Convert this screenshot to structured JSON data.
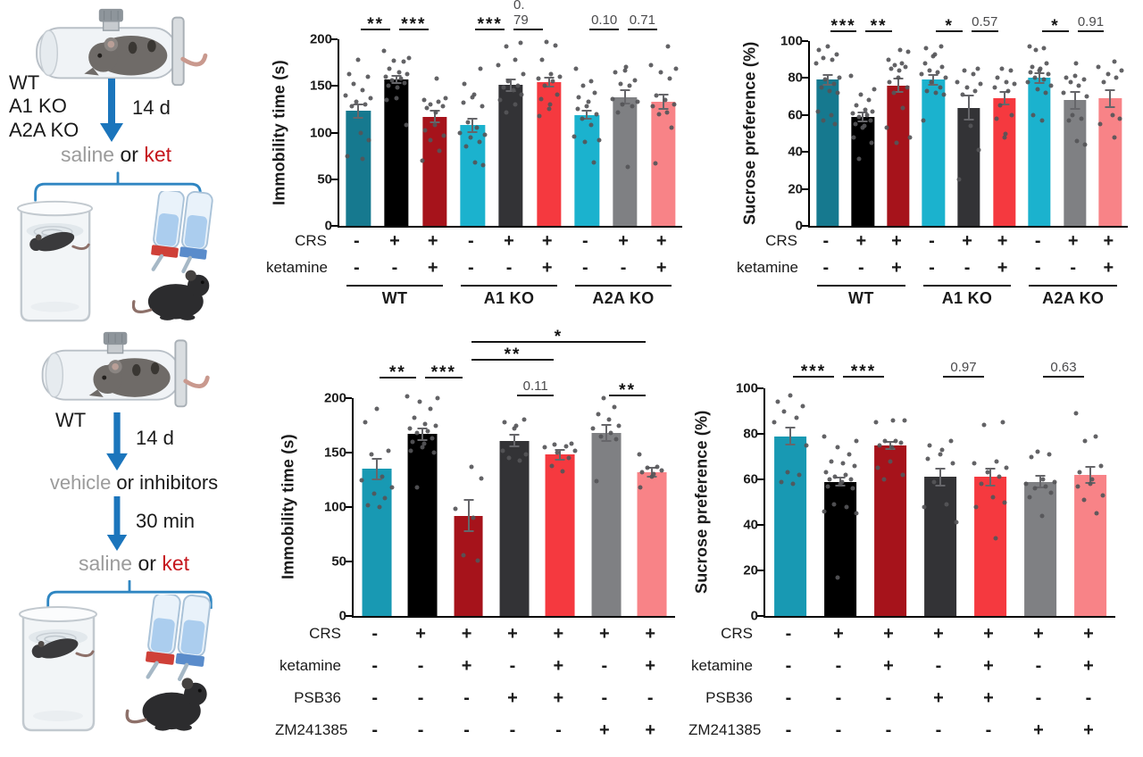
{
  "palette": {
    "teal": "#16798F",
    "black": "#000000",
    "dark_red": "#A6131B",
    "cyan": "#1BB2CE",
    "mid_cyan": "#1899B3",
    "charcoal": "#333336",
    "red": "#F5393F",
    "gray": "#7F8083",
    "salmon": "#F88387",
    "schematic_gray": "#9b9b9b",
    "ket_red": "#c5161d",
    "text_black": "#1a1a1a",
    "arrow_blue": "#1b75bc",
    "bracket_blue": "#2f86c2"
  },
  "schematic_top": {
    "strains": [
      "WT",
      "A1 KO",
      "A2A KO"
    ],
    "duration": "14 d",
    "saline": "saline",
    "or": " or ",
    "ket": "ket"
  },
  "schematic_bottom": {
    "strain": "WT",
    "duration": "14 d",
    "vehicle": "vehicle",
    "or_inhibitors": " or inhibitors",
    "delay": "30 min",
    "saline": "saline",
    "or": " or ",
    "ket": "ket"
  },
  "chart_data": [
    {
      "type": "bar",
      "ylabel": "Immobility time (s)",
      "ylim": [
        0,
        200
      ],
      "yticks": [
        0,
        50,
        100,
        150,
        200
      ],
      "bars": [
        {
          "value": 123,
          "err": 8,
          "color": "teal",
          "points": [
            178,
            163,
            160,
            152,
            145,
            140,
            137,
            133,
            130,
            128,
            100,
            92,
            75,
            72
          ]
        },
        {
          "value": 157,
          "err": 5,
          "color": "black",
          "points": [
            188,
            180,
            177,
            176,
            168,
            165,
            163,
            160,
            158,
            156,
            153,
            150,
            148,
            137,
            135,
            108
          ]
        },
        {
          "value": 117,
          "err": 7,
          "color": "dark_red",
          "points": [
            158,
            137,
            135,
            133,
            130,
            128,
            126,
            122,
            108,
            102,
            97,
            92,
            80,
            70
          ]
        },
        {
          "value": 108,
          "err": 8,
          "color": "cyan",
          "points": [
            168,
            152,
            141,
            138,
            132,
            128,
            111,
            105,
            100,
            98,
            95,
            90,
            85,
            68,
            65
          ]
        },
        {
          "value": 151,
          "err": 7,
          "color": "charcoal",
          "points": [
            196,
            192,
            178,
            172,
            163,
            155,
            150,
            148,
            145,
            141,
            135,
            130,
            122
          ]
        },
        {
          "value": 154,
          "err": 6,
          "color": "red",
          "points": [
            197,
            193,
            178,
            163,
            160,
            158,
            155,
            150,
            141,
            136,
            130,
            125,
            118
          ]
        },
        {
          "value": 119,
          "err": 5,
          "color": "cyan",
          "points": [
            168,
            155,
            150,
            143,
            138,
            133,
            128,
            125,
            120,
            115,
            108,
            96,
            92,
            90,
            68
          ]
        },
        {
          "value": 138,
          "err": 8,
          "color": "gray",
          "points": [
            170,
            167,
            165,
            156,
            152,
            150,
            136,
            133,
            130,
            128,
            122,
            63
          ]
        },
        {
          "value": 133,
          "err": 9,
          "color": "salmon",
          "points": [
            192,
            172,
            168,
            165,
            158,
            140,
            135,
            130,
            128,
            122,
            120,
            105,
            67
          ]
        }
      ],
      "sig": [
        {
          "from": 0,
          "to": 1,
          "label": "**",
          "level": 0
        },
        {
          "from": 1,
          "to": 2,
          "label": "***",
          "level": 0
        },
        {
          "from": 3,
          "to": 4,
          "label": "***",
          "level": 0
        },
        {
          "from": 4,
          "to": 5,
          "label": "0. 79",
          "level": 0
        },
        {
          "from": 6,
          "to": 7,
          "label": "0.10",
          "level": 0
        },
        {
          "from": 7,
          "to": 8,
          "label": "0.71",
          "level": 0
        }
      ],
      "rows": [
        {
          "label": "CRS",
          "values": [
            "-",
            "+",
            "+",
            "-",
            "+",
            "+",
            "-",
            "+",
            "+"
          ]
        },
        {
          "label": "ketamine",
          "values": [
            "-",
            "-",
            "+",
            "-",
            "-",
            "+",
            "-",
            "-",
            "+"
          ]
        }
      ],
      "groups": [
        {
          "label": "WT",
          "from": 0,
          "to": 2
        },
        {
          "label": "A1 KO",
          "from": 3,
          "to": 5
        },
        {
          "label": "A2A KO",
          "from": 6,
          "to": 8
        }
      ]
    },
    {
      "type": "bar",
      "ylabel": "Sucrose preference (%)",
      "ylim": [
        0,
        100
      ],
      "yticks": [
        0,
        20,
        40,
        60,
        80,
        100
      ],
      "bars": [
        {
          "value": 79,
          "err": 3,
          "color": "teal",
          "points": [
            97,
            95,
            93,
            91,
            90,
            88,
            80,
            79,
            77,
            75,
            73,
            72,
            62,
            60,
            57,
            55
          ]
        },
        {
          "value": 59,
          "err": 3,
          "color": "black",
          "points": [
            81,
            74,
            71,
            68,
            65,
            63,
            62,
            61,
            60,
            59,
            57,
            55,
            54,
            53,
            48,
            45,
            36
          ]
        },
        {
          "value": 76,
          "err": 4,
          "color": "dark_red",
          "points": [
            95,
            94,
            90,
            88,
            87,
            86,
            85,
            84,
            80,
            78,
            75,
            72,
            64,
            53,
            48,
            45
          ]
        },
        {
          "value": 79,
          "err": 3,
          "color": "cyan",
          "points": [
            97,
            96,
            93,
            92,
            88,
            86,
            84,
            83,
            82,
            80,
            78,
            75,
            73,
            72,
            71,
            57
          ]
        },
        {
          "value": 64,
          "err": 7,
          "color": "charcoal",
          "points": [
            85,
            84,
            82,
            78,
            77,
            75,
            73,
            71,
            54,
            41,
            25
          ]
        },
        {
          "value": 69,
          "err": 4,
          "color": "red",
          "points": [
            85,
            84,
            80,
            78,
            77,
            75,
            73,
            65,
            60,
            58,
            50,
            48
          ]
        },
        {
          "value": 80,
          "err": 3,
          "color": "cyan",
          "points": [
            97,
            96,
            95,
            88,
            86,
            85,
            84,
            83,
            82,
            80,
            79,
            78,
            76,
            74,
            72,
            60,
            57
          ]
        },
        {
          "value": 68,
          "err": 5,
          "color": "gray",
          "points": [
            88,
            81,
            80,
            79,
            78,
            76,
            72,
            70,
            60,
            58,
            57,
            46,
            44
          ]
        },
        {
          "value": 69,
          "err": 5,
          "color": "salmon",
          "points": [
            89,
            86,
            84,
            82,
            80,
            78,
            60,
            58,
            55,
            48
          ]
        }
      ],
      "sig": [
        {
          "from": 0,
          "to": 1,
          "label": "***",
          "level": 0
        },
        {
          "from": 1,
          "to": 2,
          "label": "**",
          "level": 0
        },
        {
          "from": 3,
          "to": 4,
          "label": "*",
          "level": 0
        },
        {
          "from": 4,
          "to": 5,
          "label": "0.57",
          "level": 0
        },
        {
          "from": 6,
          "to": 7,
          "label": "*",
          "level": 0
        },
        {
          "from": 7,
          "to": 8,
          "label": "0.91",
          "level": 0
        }
      ],
      "rows": [
        {
          "label": "CRS",
          "values": [
            "-",
            "+",
            "+",
            "-",
            "+",
            "+",
            "-",
            "+",
            "+"
          ]
        },
        {
          "label": "ketamine",
          "values": [
            "-",
            "-",
            "+",
            "-",
            "-",
            "+",
            "-",
            "-",
            "+"
          ]
        }
      ],
      "groups": [
        {
          "label": "WT",
          "from": 0,
          "to": 2
        },
        {
          "label": "A1 KO",
          "from": 3,
          "to": 5
        },
        {
          "label": "A2A KO",
          "from": 6,
          "to": 8
        }
      ]
    },
    {
      "type": "bar",
      "ylabel": "Immobility time (s)",
      "ylim": [
        0,
        200
      ],
      "yticks": [
        0,
        50,
        100,
        150,
        200
      ],
      "bars": [
        {
          "value": 135,
          "err": 10,
          "color": "mid_cyan",
          "points": [
            190,
            178,
            152,
            148,
            128,
            125,
            118,
            112,
            108,
            102,
            100
          ]
        },
        {
          "value": 167,
          "err": 6,
          "color": "black",
          "points": [
            202,
            200,
            197,
            190,
            182,
            176,
            175,
            172,
            170,
            168,
            163,
            160,
            158,
            155,
            152,
            150,
            118
          ]
        },
        {
          "value": 92,
          "err": 15,
          "color": "dark_red",
          "points": [
            137,
            126,
            98,
            90,
            56,
            51
          ]
        },
        {
          "value": 161,
          "err": 6,
          "color": "charcoal",
          "points": [
            180,
            178,
            175,
            172,
            152,
            148,
            145,
            143
          ]
        },
        {
          "value": 148,
          "err": 5,
          "color": "red",
          "points": [
            158,
            157,
            156,
            155,
            152,
            150,
            145,
            138,
            133
          ]
        },
        {
          "value": 168,
          "err": 8,
          "color": "gray",
          "points": [
            200,
            192,
            185,
            180,
            175,
            172,
            168,
            165,
            162,
            124
          ]
        },
        {
          "value": 132,
          "err": 5,
          "color": "salmon",
          "points": [
            148,
            137,
            136,
            134,
            132,
            130,
            128,
            118
          ]
        }
      ],
      "sig": [
        {
          "from": 3,
          "to": 4,
          "label": "0.11",
          "level": 0
        },
        {
          "from": 5,
          "to": 6,
          "label": "**",
          "level": 0
        },
        {
          "from": 0,
          "to": 1,
          "label": "**",
          "level": 1
        },
        {
          "from": 1,
          "to": 2,
          "label": "***",
          "level": 1
        },
        {
          "from": 2,
          "to": 4,
          "label": "**",
          "level": 2
        },
        {
          "from": 2,
          "to": 6,
          "label": "*",
          "level": 3
        }
      ],
      "rows": [
        {
          "label": "CRS",
          "values": [
            "-",
            "+",
            "+",
            "+",
            "+",
            "+",
            "+"
          ]
        },
        {
          "label": "ketamine",
          "values": [
            "-",
            "-",
            "+",
            "-",
            "+",
            "-",
            "+"
          ]
        },
        {
          "label": "PSB36",
          "values": [
            "-",
            "-",
            "-",
            "+",
            "+",
            "-",
            "-"
          ]
        },
        {
          "label": "ZM241385",
          "values": [
            "-",
            "-",
            "-",
            "-",
            "-",
            "+",
            "+"
          ]
        }
      ],
      "groups": []
    },
    {
      "type": "bar",
      "ylabel": "Sucrose preference (%)",
      "ylim": [
        0,
        100
      ],
      "yticks": [
        0,
        20,
        40,
        60,
        80,
        100
      ],
      "bars": [
        {
          "value": 79,
          "err": 4,
          "color": "mid_cyan",
          "points": [
            97,
            94,
            92,
            90,
            87,
            85,
            75,
            63,
            62,
            59,
            58
          ]
        },
        {
          "value": 59,
          "err": 2,
          "color": "black",
          "points": [
            79,
            77,
            74,
            71,
            68,
            67,
            66,
            63,
            62,
            61,
            60,
            60,
            59,
            58,
            57,
            56,
            49,
            48,
            46,
            45,
            17
          ]
        },
        {
          "value": 75,
          "err": 2,
          "color": "dark_red",
          "points": [
            86,
            86,
            85,
            77,
            77,
            76,
            75,
            74,
            68,
            65,
            62,
            60
          ]
        },
        {
          "value": 61,
          "err": 4,
          "color": "charcoal",
          "points": [
            77,
            75,
            73,
            71,
            69,
            67,
            59,
            49,
            48,
            41
          ]
        },
        {
          "value": 61,
          "err": 4,
          "color": "red",
          "points": [
            85,
            84,
            68,
            67,
            65,
            63,
            61,
            58,
            52,
            50,
            48,
            34
          ]
        },
        {
          "value": 59,
          "err": 3,
          "color": "gray",
          "points": [
            72,
            71,
            70,
            60,
            59,
            58,
            57,
            56,
            54,
            52,
            44
          ]
        },
        {
          "value": 62,
          "err": 4,
          "color": "salmon",
          "points": [
            89,
            79,
            77,
            66,
            63,
            60,
            58,
            57,
            53,
            51,
            45
          ]
        }
      ],
      "sig": [
        {
          "from": 0,
          "to": 1,
          "label": "***",
          "level": 0
        },
        {
          "from": 1,
          "to": 2,
          "label": "***",
          "level": 0
        },
        {
          "from": 3,
          "to": 4,
          "label": "0.97",
          "level": 0
        },
        {
          "from": 5,
          "to": 6,
          "label": "0.63",
          "level": 0
        }
      ],
      "rows": [
        {
          "label": "CRS",
          "values": [
            "-",
            "+",
            "+",
            "+",
            "+",
            "+",
            "+"
          ]
        },
        {
          "label": "ketamine",
          "values": [
            "-",
            "-",
            "+",
            "-",
            "+",
            "-",
            "+"
          ]
        },
        {
          "label": "PSB36",
          "values": [
            "-",
            "-",
            "-",
            "+",
            "+",
            "-",
            "-"
          ]
        },
        {
          "label": "ZM241385",
          "values": [
            "-",
            "-",
            "-",
            "-",
            "-",
            "+",
            "+"
          ]
        }
      ],
      "groups": []
    }
  ]
}
